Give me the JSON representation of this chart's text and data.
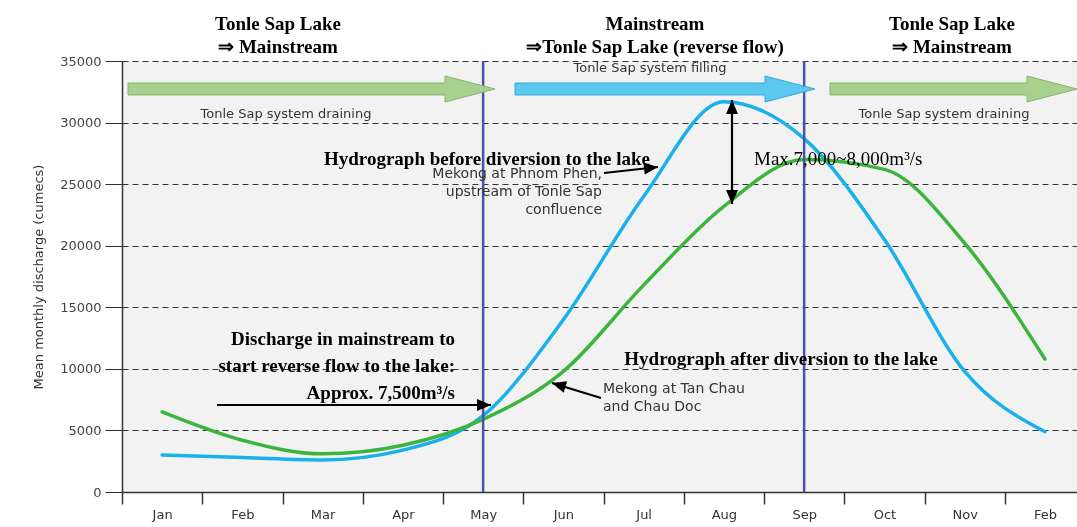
{
  "chart_data": {
    "type": "line",
    "ylabel": "Mean monthly discharge (cumecs)",
    "categories": [
      "Jan",
      "Feb",
      "Mar",
      "Apr",
      "May",
      "Jun",
      "Jul",
      "Aug",
      "Sep",
      "Oct",
      "Nov",
      "Feb"
    ],
    "ylim": [
      0,
      35000
    ],
    "yticks": [
      0,
      5000,
      10000,
      15000,
      20000,
      25000,
      30000,
      35000
    ],
    "grid": "y",
    "marker": "none",
    "line_style": "solid",
    "series": [
      {
        "name": "Mekong at Phnom Phen, upstream of Tonle Sap confluence",
        "color": "#1ab0ea",
        "values": [
          3000,
          2800,
          2600,
          3400,
          6200,
          14000,
          24000,
          31700,
          28700,
          20500,
          9800,
          4900
        ]
      },
      {
        "name": "Mekong at Tan Chau and Chau Doc",
        "color": "#3cb53c",
        "values": [
          6500,
          4200,
          3100,
          3800,
          5900,
          9800,
          16800,
          23200,
          27000,
          26200,
          20200,
          10800
        ]
      }
    ],
    "ref_lines": [
      {
        "axis": "x",
        "value": "May",
        "color": "#5050a8"
      },
      {
        "axis": "x",
        "value": "Sep",
        "color": "#5050a8"
      }
    ],
    "annotations": [
      "Tonle Sap Lake ⇒ Mainstream",
      "Mainstream ⇒Tonle Sap Lake (reverse flow)",
      "Tonle Sap Lake ⇒ Mainstream",
      "Tonle Sap system draining",
      "Tonle Sap system filling",
      "Tonle Sap system draining",
      "Hydrograph after diversion to the lake",
      "Hydrograph before diversion to the lake",
      "Max.7,000~8,000m³/s",
      "Discharge in mainstream to start reverse flow to the lake: Approx. 7,500m³/s"
    ]
  }
}
